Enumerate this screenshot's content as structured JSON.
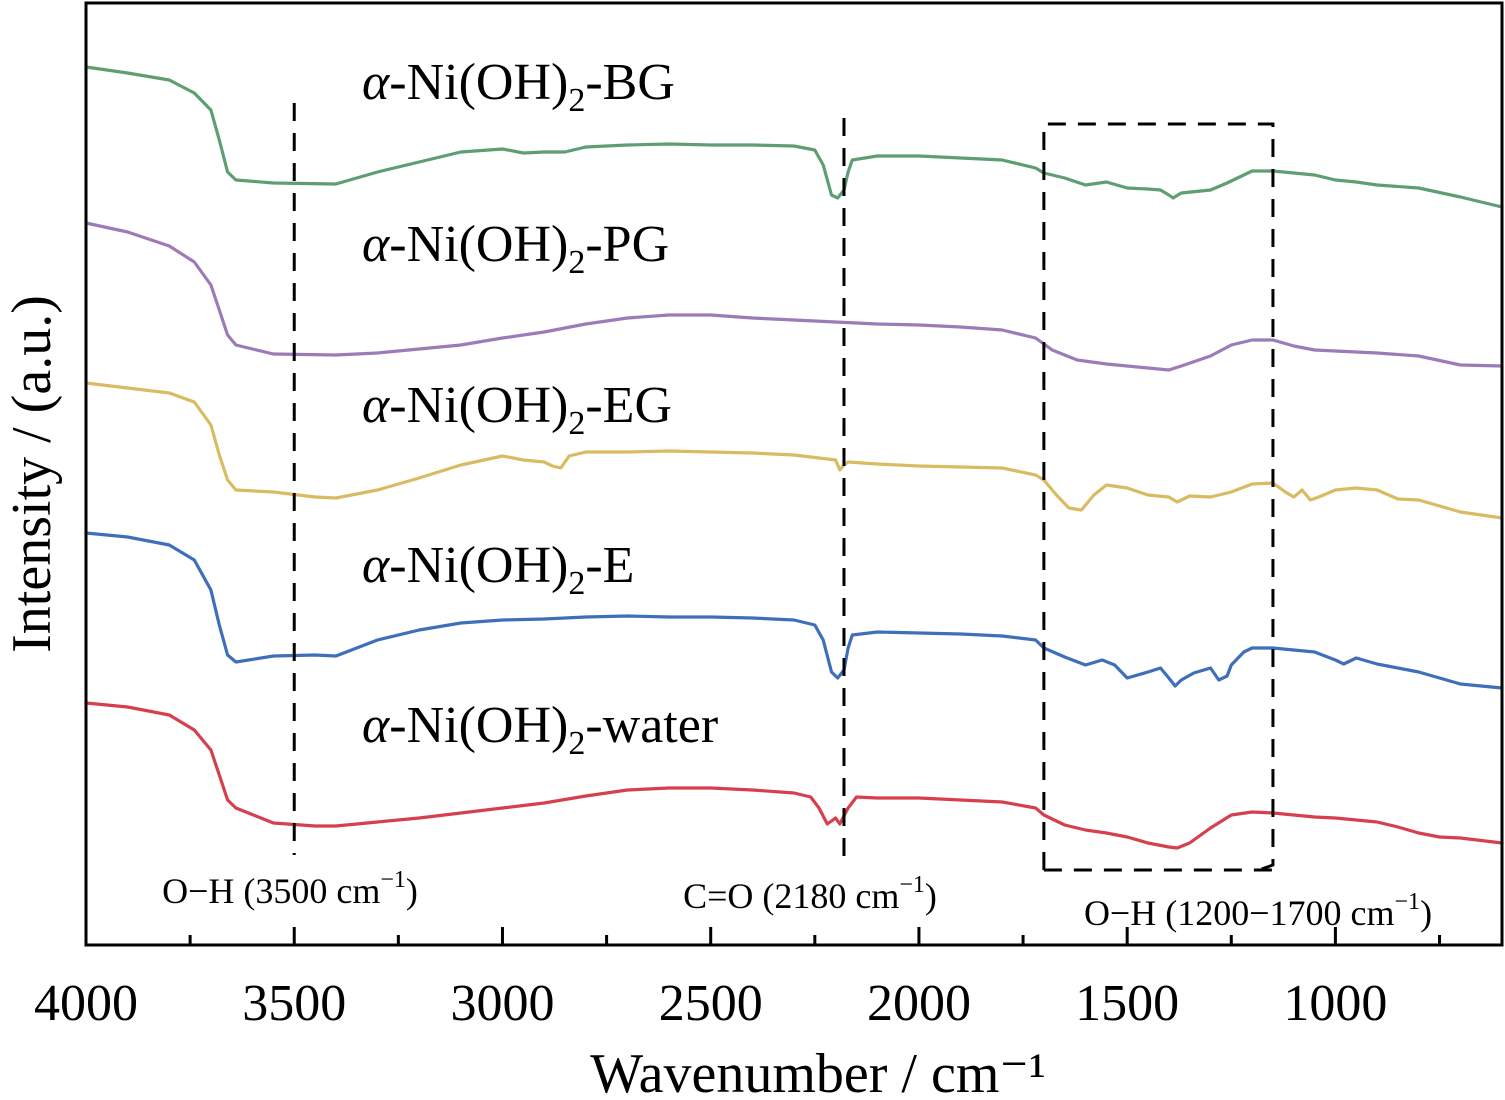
{
  "chart_data": {
    "type": "line",
    "title": "",
    "xlabel": "Wavenumber / cm⁻¹",
    "ylabel": "Intensity / (a.u.)",
    "xlim": [
      4000,
      600
    ],
    "x_reversed": true,
    "y_ticks_shown": false,
    "grid": false,
    "x_ticks": [
      "4000",
      "3500",
      "3000",
      "2500",
      "2000",
      "1500",
      "1000"
    ],
    "x_tick_values": [
      4000,
      3500,
      3000,
      2500,
      2000,
      1500,
      1000
    ],
    "x_minor_tick_values": [
      3750,
      3250,
      2750,
      2250,
      1750,
      1250,
      750
    ],
    "series": [
      {
        "name": "α-Ni(OH)₂-BG",
        "label_parts": [
          "α",
          "-Ni(OH)",
          "2",
          "-BG"
        ],
        "color": "#5f9e72",
        "label_y": 79,
        "points": [
          [
            4000,
            67
          ],
          [
            3900,
            73
          ],
          [
            3800,
            80
          ],
          [
            3740,
            93
          ],
          [
            3700,
            110
          ],
          [
            3680,
            140
          ],
          [
            3660,
            172
          ],
          [
            3640,
            180
          ],
          [
            3550,
            183
          ],
          [
            3400,
            184
          ],
          [
            3300,
            172
          ],
          [
            3200,
            162
          ],
          [
            3100,
            152
          ],
          [
            3000,
            149
          ],
          [
            2950,
            153
          ],
          [
            2900,
            152
          ],
          [
            2850,
            152
          ],
          [
            2800,
            147
          ],
          [
            2700,
            145
          ],
          [
            2600,
            144
          ],
          [
            2500,
            145
          ],
          [
            2400,
            145
          ],
          [
            2300,
            146
          ],
          [
            2250,
            150
          ],
          [
            2230,
            165
          ],
          [
            2210,
            195
          ],
          [
            2195,
            198
          ],
          [
            2180,
            190
          ],
          [
            2170,
            172
          ],
          [
            2160,
            160
          ],
          [
            2100,
            156
          ],
          [
            2000,
            156
          ],
          [
            1900,
            158
          ],
          [
            1800,
            160
          ],
          [
            1720,
            168
          ],
          [
            1700,
            173
          ],
          [
            1650,
            178
          ],
          [
            1600,
            185
          ],
          [
            1550,
            182
          ],
          [
            1500,
            188
          ],
          [
            1450,
            189
          ],
          [
            1420,
            190
          ],
          [
            1400,
            195
          ],
          [
            1390,
            198
          ],
          [
            1370,
            193
          ],
          [
            1300,
            190
          ],
          [
            1260,
            183
          ],
          [
            1200,
            171
          ],
          [
            1150,
            171
          ],
          [
            1100,
            173
          ],
          [
            1050,
            175
          ],
          [
            1000,
            180
          ],
          [
            950,
            182
          ],
          [
            900,
            185
          ],
          [
            800,
            188
          ],
          [
            700,
            197
          ],
          [
            600,
            207
          ]
        ]
      },
      {
        "name": "α-Ni(OH)₂-PG",
        "label_parts": [
          "α",
          "-Ni(OH)",
          "2",
          "-PG"
        ],
        "color": "#9b7bb8",
        "label_y": 241,
        "points": [
          [
            4000,
            223
          ],
          [
            3900,
            232
          ],
          [
            3800,
            246
          ],
          [
            3740,
            262
          ],
          [
            3700,
            285
          ],
          [
            3680,
            310
          ],
          [
            3660,
            335
          ],
          [
            3640,
            345
          ],
          [
            3550,
            354
          ],
          [
            3400,
            355
          ],
          [
            3300,
            353
          ],
          [
            3200,
            349
          ],
          [
            3100,
            345
          ],
          [
            3000,
            338
          ],
          [
            2900,
            332
          ],
          [
            2800,
            324
          ],
          [
            2700,
            318
          ],
          [
            2600,
            315
          ],
          [
            2500,
            315
          ],
          [
            2400,
            318
          ],
          [
            2300,
            320
          ],
          [
            2200,
            322
          ],
          [
            2100,
            324
          ],
          [
            2000,
            325
          ],
          [
            1900,
            327
          ],
          [
            1800,
            330
          ],
          [
            1720,
            338
          ],
          [
            1680,
            350
          ],
          [
            1620,
            360
          ],
          [
            1550,
            364
          ],
          [
            1450,
            368
          ],
          [
            1400,
            370
          ],
          [
            1370,
            366
          ],
          [
            1300,
            356
          ],
          [
            1250,
            345
          ],
          [
            1200,
            340
          ],
          [
            1150,
            340
          ],
          [
            1100,
            346
          ],
          [
            1050,
            350
          ],
          [
            1000,
            351
          ],
          [
            900,
            353
          ],
          [
            800,
            356
          ],
          [
            700,
            365
          ],
          [
            600,
            366
          ]
        ]
      },
      {
        "name": "α-Ni(OH)₂-EG",
        "label_parts": [
          "α",
          "-Ni(OH)",
          "2",
          "-EG"
        ],
        "color": "#d8bb62",
        "label_y": 402,
        "points": [
          [
            4000,
            383
          ],
          [
            3900,
            388
          ],
          [
            3800,
            393
          ],
          [
            3740,
            402
          ],
          [
            3700,
            425
          ],
          [
            3680,
            455
          ],
          [
            3660,
            480
          ],
          [
            3640,
            490
          ],
          [
            3550,
            492
          ],
          [
            3450,
            497
          ],
          [
            3400,
            498
          ],
          [
            3300,
            490
          ],
          [
            3200,
            478
          ],
          [
            3100,
            465
          ],
          [
            3000,
            456
          ],
          [
            2950,
            460
          ],
          [
            2900,
            462
          ],
          [
            2880,
            466
          ],
          [
            2860,
            468
          ],
          [
            2840,
            456
          ],
          [
            2800,
            452
          ],
          [
            2700,
            452
          ],
          [
            2600,
            451
          ],
          [
            2500,
            452
          ],
          [
            2400,
            453
          ],
          [
            2300,
            455
          ],
          [
            2200,
            460
          ],
          [
            2190,
            470
          ],
          [
            2180,
            465
          ],
          [
            2170,
            462
          ],
          [
            2100,
            464
          ],
          [
            2000,
            466
          ],
          [
            1900,
            467
          ],
          [
            1800,
            468
          ],
          [
            1720,
            475
          ],
          [
            1700,
            480
          ],
          [
            1670,
            495
          ],
          [
            1640,
            508
          ],
          [
            1610,
            510
          ],
          [
            1580,
            495
          ],
          [
            1550,
            485
          ],
          [
            1500,
            488
          ],
          [
            1450,
            495
          ],
          [
            1400,
            497
          ],
          [
            1380,
            502
          ],
          [
            1350,
            496
          ],
          [
            1300,
            497
          ],
          [
            1250,
            492
          ],
          [
            1200,
            484
          ],
          [
            1150,
            483
          ],
          [
            1120,
            492
          ],
          [
            1100,
            497
          ],
          [
            1080,
            490
          ],
          [
            1060,
            500
          ],
          [
            1040,
            497
          ],
          [
            1000,
            490
          ],
          [
            950,
            488
          ],
          [
            900,
            490
          ],
          [
            850,
            499
          ],
          [
            800,
            500
          ],
          [
            700,
            512
          ],
          [
            600,
            518
          ]
        ]
      },
      {
        "name": "α-Ni(OH)₂-E",
        "label_parts": [
          "α",
          "-Ni(OH)",
          "2",
          "-E"
        ],
        "color": "#3f6fba",
        "label_y": 562,
        "points": [
          [
            4000,
            533
          ],
          [
            3900,
            537
          ],
          [
            3800,
            545
          ],
          [
            3740,
            560
          ],
          [
            3700,
            590
          ],
          [
            3680,
            625
          ],
          [
            3660,
            655
          ],
          [
            3640,
            662
          ],
          [
            3550,
            656
          ],
          [
            3450,
            655
          ],
          [
            3400,
            656
          ],
          [
            3300,
            640
          ],
          [
            3200,
            630
          ],
          [
            3100,
            623
          ],
          [
            3000,
            620
          ],
          [
            2900,
            619
          ],
          [
            2800,
            617
          ],
          [
            2700,
            616
          ],
          [
            2600,
            617
          ],
          [
            2500,
            617
          ],
          [
            2400,
            618
          ],
          [
            2300,
            620
          ],
          [
            2250,
            625
          ],
          [
            2230,
            640
          ],
          [
            2210,
            672
          ],
          [
            2195,
            678
          ],
          [
            2180,
            670
          ],
          [
            2170,
            648
          ],
          [
            2160,
            635
          ],
          [
            2100,
            632
          ],
          [
            2000,
            633
          ],
          [
            1900,
            634
          ],
          [
            1800,
            636
          ],
          [
            1720,
            640
          ],
          [
            1700,
            648
          ],
          [
            1650,
            657
          ],
          [
            1600,
            665
          ],
          [
            1560,
            660
          ],
          [
            1530,
            665
          ],
          [
            1500,
            678
          ],
          [
            1450,
            672
          ],
          [
            1420,
            668
          ],
          [
            1400,
            678
          ],
          [
            1385,
            686
          ],
          [
            1370,
            680
          ],
          [
            1340,
            673
          ],
          [
            1300,
            668
          ],
          [
            1280,
            680
          ],
          [
            1260,
            676
          ],
          [
            1250,
            665
          ],
          [
            1220,
            652
          ],
          [
            1200,
            648
          ],
          [
            1150,
            648
          ],
          [
            1100,
            650
          ],
          [
            1050,
            652
          ],
          [
            1000,
            660
          ],
          [
            980,
            664
          ],
          [
            950,
            658
          ],
          [
            900,
            664
          ],
          [
            850,
            668
          ],
          [
            800,
            672
          ],
          [
            700,
            684
          ],
          [
            600,
            688
          ]
        ]
      },
      {
        "name": "α-Ni(OH)₂-water",
        "label_parts": [
          "α",
          "-Ni(OH)",
          "2",
          "-water"
        ],
        "color": "#d6404e",
        "label_y": 722,
        "points": [
          [
            4000,
            703
          ],
          [
            3900,
            707
          ],
          [
            3800,
            715
          ],
          [
            3740,
            730
          ],
          [
            3700,
            750
          ],
          [
            3680,
            775
          ],
          [
            3660,
            800
          ],
          [
            3640,
            808
          ],
          [
            3550,
            823
          ],
          [
            3450,
            826
          ],
          [
            3400,
            826
          ],
          [
            3300,
            822
          ],
          [
            3200,
            818
          ],
          [
            3100,
            813
          ],
          [
            3000,
            808
          ],
          [
            2900,
            803
          ],
          [
            2800,
            796
          ],
          [
            2700,
            790
          ],
          [
            2600,
            788
          ],
          [
            2500,
            788
          ],
          [
            2400,
            790
          ],
          [
            2300,
            793
          ],
          [
            2260,
            797
          ],
          [
            2240,
            808
          ],
          [
            2220,
            824
          ],
          [
            2200,
            818
          ],
          [
            2190,
            824
          ],
          [
            2170,
            808
          ],
          [
            2150,
            797
          ],
          [
            2100,
            798
          ],
          [
            2000,
            798
          ],
          [
            1900,
            800
          ],
          [
            1800,
            802
          ],
          [
            1720,
            808
          ],
          [
            1700,
            815
          ],
          [
            1650,
            825
          ],
          [
            1600,
            830
          ],
          [
            1550,
            833
          ],
          [
            1500,
            837
          ],
          [
            1450,
            843
          ],
          [
            1400,
            847
          ],
          [
            1380,
            848
          ],
          [
            1350,
            843
          ],
          [
            1300,
            828
          ],
          [
            1250,
            815
          ],
          [
            1200,
            812
          ],
          [
            1150,
            813
          ],
          [
            1100,
            815
          ],
          [
            1050,
            817
          ],
          [
            1000,
            818
          ],
          [
            950,
            820
          ],
          [
            900,
            822
          ],
          [
            850,
            827
          ],
          [
            800,
            833
          ],
          [
            750,
            837
          ],
          [
            700,
            838
          ],
          [
            600,
            843
          ]
        ]
      }
    ],
    "reference_lines": [
      {
        "x": 3500,
        "label_main": "O−H (3500 cm",
        "label_sup": "−1",
        "label_close": ")"
      },
      {
        "x": 2180,
        "label_main": "C=O (2180 cm",
        "label_sup": "−1",
        "label_close": ")"
      }
    ],
    "reference_box": {
      "x_from": 1700,
      "x_to": 1150,
      "label_main": "O−H (1200−1700 cm",
      "label_sup": "−1",
      "label_close": ")"
    }
  }
}
